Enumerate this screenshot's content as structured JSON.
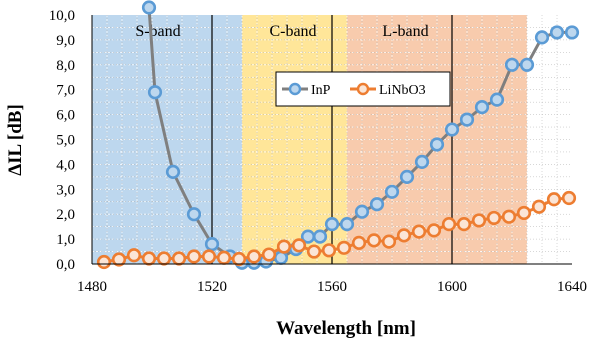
{
  "chart_data": {
    "type": "line",
    "xlabel": "Wavelength [nm]",
    "ylabel": "ΔIL [dB]",
    "xlim": [
      1480,
      1640
    ],
    "ylim": [
      0,
      10
    ],
    "xticks": [
      "1480",
      "1520",
      "1560",
      "1600",
      "1640"
    ],
    "yticks": [
      "0,0",
      "1,0",
      "2,0",
      "3,0",
      "4,0",
      "5,0",
      "6,0",
      "7,0",
      "8,0",
      "9,0",
      "10,0"
    ],
    "grid": true,
    "legend": "inside, upper middle",
    "bands": [
      {
        "label": "S-band",
        "from": 1480,
        "to": 1530,
        "color": "#bdd7ee"
      },
      {
        "label": "C-band",
        "from": 1530,
        "to": 1565,
        "color": "#ffe699"
      },
      {
        "label": "L-band",
        "from": 1565,
        "to": 1625,
        "color": "#f8cbad"
      }
    ],
    "vlines": [
      1520,
      1560,
      1600
    ],
    "series": [
      {
        "name": "InP",
        "color": "#7f7f7f",
        "marker_edge": "#5b9bd5",
        "marker_fill": "#bdd7ee",
        "x": [
          1499,
          1501,
          1507,
          1514,
          1520,
          1526,
          1530,
          1534,
          1538,
          1543,
          1548,
          1552,
          1556,
          1560,
          1565,
          1570,
          1575,
          1580,
          1585,
          1590,
          1595,
          1600,
          1605,
          1610,
          1615,
          1620,
          1625,
          1630,
          1635,
          1640
        ],
        "values": [
          10.3,
          6.9,
          3.7,
          2.0,
          0.8,
          0.3,
          0.05,
          0.05,
          0.1,
          0.25,
          0.6,
          1.1,
          1.1,
          1.6,
          1.6,
          2.1,
          2.4,
          2.9,
          3.5,
          4.1,
          4.8,
          5.4,
          5.8,
          6.3,
          6.6,
          8.0,
          8.0,
          9.1,
          9.3,
          9.3
        ]
      },
      {
        "name": "LiNbO3",
        "color": "#ed7d31",
        "marker_edge": "#ed7d31",
        "marker_fill": "#fbe5d6",
        "x": [
          1484,
          1489,
          1494,
          1499,
          1504,
          1509,
          1514,
          1519,
          1524,
          1529,
          1534,
          1539,
          1544,
          1549,
          1554,
          1559,
          1564,
          1569,
          1574,
          1579,
          1584,
          1589,
          1594,
          1599,
          1604,
          1609,
          1614,
          1619,
          1624,
          1629,
          1634,
          1639
        ],
        "values": [
          0.08,
          0.18,
          0.35,
          0.22,
          0.22,
          0.22,
          0.3,
          0.3,
          0.25,
          0.2,
          0.3,
          0.38,
          0.7,
          0.75,
          0.5,
          0.55,
          0.65,
          0.85,
          0.95,
          0.9,
          1.15,
          1.3,
          1.35,
          1.6,
          1.6,
          1.75,
          1.85,
          1.9,
          2.05,
          2.3,
          2.6,
          2.65
        ]
      }
    ]
  }
}
